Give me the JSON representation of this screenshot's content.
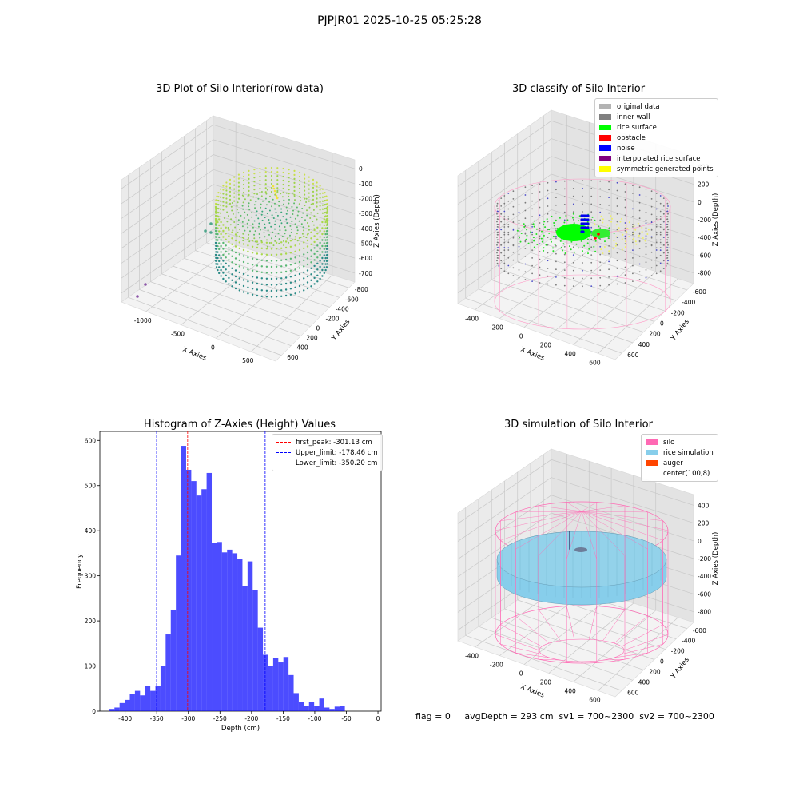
{
  "suptitle": "PJPJR01 2025-10-25 05:25:28",
  "footer": "flag = 0     avgDepth = 293 cm  sv1 = 700~2300  sv2 = 700~2300",
  "panels": {
    "raw": {
      "title": "3D Plot of Silo Interior(row data)",
      "xlabel": "X Axies",
      "ylabel": "Y Axies",
      "zlabel": "Z Axies (Depth)",
      "xticks": [
        "-1000",
        "-500",
        "0",
        "500"
      ],
      "yticks": [
        "600",
        "400",
        "200",
        "0",
        "-200",
        "-400",
        "-600",
        "-800"
      ],
      "zticks": [
        "0",
        "-100",
        "-200",
        "-300",
        "-400",
        "-500",
        "-600",
        "-700"
      ]
    },
    "classify": {
      "title": "3D classify of Silo Interior",
      "xlabel": "X Axies",
      "ylabel": "Y Axies",
      "zlabel": "Z Axies (Depth)",
      "xticks": [
        "-400",
        "-200",
        "0",
        "200",
        "400",
        "600"
      ],
      "yticks": [
        "600",
        "400",
        "200",
        "0",
        "-200",
        "-400",
        "-600"
      ],
      "zticks": [
        "400",
        "200",
        "0",
        "-200",
        "-400",
        "-600",
        "-800"
      ],
      "legend": [
        {
          "label": "original data",
          "color": "#b3b3b3"
        },
        {
          "label": "inner wall",
          "color": "#808080"
        },
        {
          "label": "rice surface",
          "color": "#00ff00"
        },
        {
          "label": "obstacle",
          "color": "#ff0000"
        },
        {
          "label": "noise",
          "color": "#0000ff"
        },
        {
          "label": "interpolated rice surface",
          "color": "#800080"
        },
        {
          "label": "symmetric generated points",
          "color": "#ffff00"
        }
      ]
    },
    "simulation": {
      "title": "3D simulation of Silo Interior",
      "xlabel": "X Axies",
      "ylabel": "Y Axies",
      "zlabel": "Z Axies (Depth)",
      "xticks": [
        "-400",
        "-200",
        "0",
        "200",
        "400",
        "600"
      ],
      "yticks": [
        "600",
        "400",
        "200",
        "0",
        "-200",
        "-400",
        "-600"
      ],
      "zticks": [
        "400",
        "200",
        "0",
        "-200",
        "-400",
        "-600",
        "-800"
      ],
      "legend": [
        {
          "label": "silo",
          "color": "#ff69b4"
        },
        {
          "label": "rice simulation",
          "color": "#87ceeb"
        },
        {
          "label": "auger",
          "color": "#ff4500"
        },
        {
          "label": "center(100,8)",
          "color": "#ffffff"
        }
      ]
    }
  },
  "chart_data": [
    {
      "type": "bar",
      "title": "Histogram of Z-Axies (Height) Values",
      "xlabel": "Depth (cm)",
      "ylabel": "Frequency",
      "xlim": [
        -440,
        5
      ],
      "ylim": [
        0,
        620
      ],
      "xticks": [
        -400,
        -350,
        -300,
        -250,
        -200,
        -150,
        -100,
        -50,
        0
      ],
      "yticks": [
        0,
        100,
        200,
        300,
        400,
        500,
        600
      ],
      "bar_color": "#0000ff",
      "bin_edges_start": -425,
      "bin_width": 8.1,
      "values": [
        5,
        8,
        18,
        25,
        38,
        45,
        35,
        55,
        45,
        55,
        100,
        170,
        225,
        345,
        588,
        535,
        510,
        478,
        492,
        528,
        372,
        375,
        352,
        358,
        350,
        338,
        278,
        332,
        268,
        185,
        125,
        100,
        118,
        108,
        120,
        80,
        40,
        20,
        12,
        20,
        12,
        28,
        8,
        5,
        10,
        12
      ],
      "vlines": [
        {
          "label": "first_peak: -301.13 cm",
          "x": -301.13,
          "color": "#ff0000"
        },
        {
          "label": "Upper_limit: -178.46 cm",
          "x": -178.46,
          "color": "#0000ff"
        },
        {
          "label": "Lower_limit: -350.20 cm",
          "x": -350.2,
          "color": "#0000ff"
        }
      ],
      "legend_position": "upper right"
    }
  ]
}
